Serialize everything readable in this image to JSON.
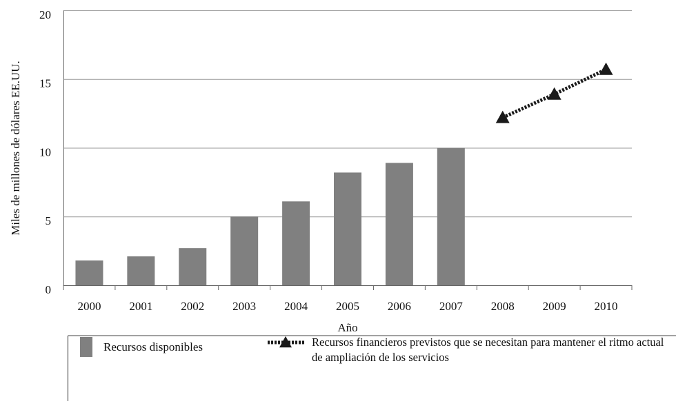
{
  "chart_data": {
    "type": "bar",
    "ylabel": "Miles de millones de dólares EE.UU.",
    "xlabel": "Año",
    "categories": [
      "2000",
      "2001",
      "2002",
      "2003",
      "2004",
      "2005",
      "2006",
      "2007",
      "2008",
      "2009",
      "2010"
    ],
    "series": [
      {
        "name": "Recursos disponibles",
        "color": "#808080",
        "values": [
          1.8,
          2.1,
          2.7,
          5.0,
          6.1,
          8.2,
          8.9,
          10.0,
          null,
          null,
          null
        ]
      },
      {
        "name": "Recursos financieros previstos que se necesitan para mantener el ritmo actual de ampliación de los servicios",
        "type": "line",
        "color": "#1a1a1a",
        "values": [
          null,
          null,
          null,
          null,
          null,
          null,
          null,
          null,
          12.2,
          13.9,
          15.7
        ]
      }
    ],
    "ylim": [
      0,
      20
    ],
    "yticks": [
      0,
      5,
      10,
      15,
      20
    ],
    "grid": true,
    "legend": "bottom"
  }
}
